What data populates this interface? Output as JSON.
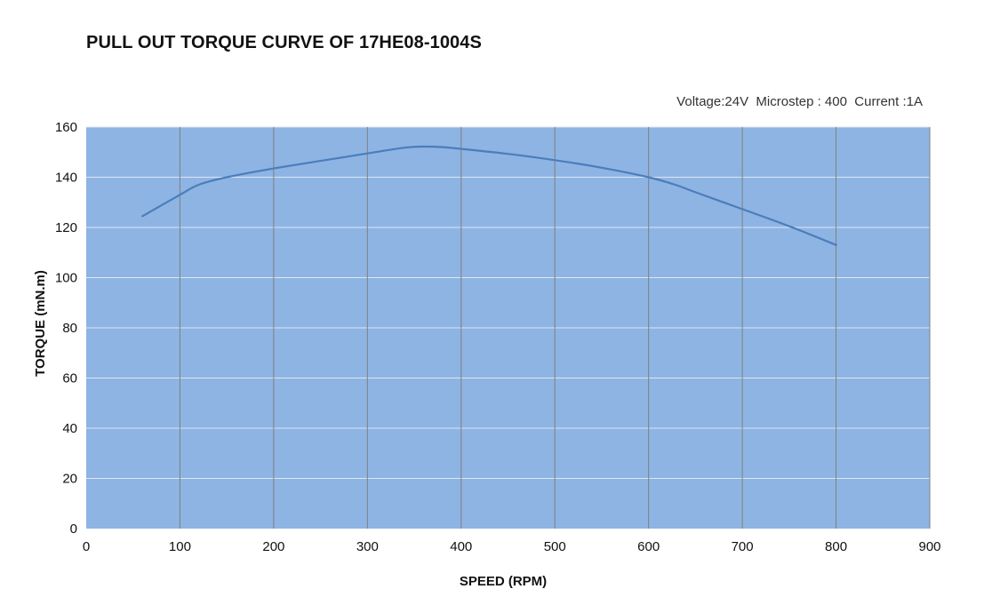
{
  "title": "PULL OUT TORQUE CURVE OF 17HE08-1004S",
  "subtitle": "Voltage:24V  Microstep : 400  Current :1A",
  "colors": {
    "plot_background": "#8eb4e3",
    "gridline_vertical": "#7f7f7f",
    "gridline_horizontal": "#dce6f2",
    "series_line": "#4a7ebb"
  },
  "chart_data": {
    "type": "line",
    "title": "PULL OUT TORQUE CURVE OF 17HE08-1004S",
    "xlabel": "SPEED (RPM)",
    "ylabel": "TORQUE (mN.m)",
    "xlim": [
      0,
      900
    ],
    "ylim": [
      0,
      160
    ],
    "xticks": [
      0,
      100,
      200,
      300,
      400,
      500,
      600,
      700,
      800,
      900
    ],
    "yticks": [
      0,
      20,
      40,
      60,
      80,
      100,
      120,
      140,
      160
    ],
    "grid": true,
    "legend": "none",
    "series": [
      {
        "x": [
          60,
          100,
          120,
          150,
          200,
          250,
          300,
          340,
          360,
          380,
          400,
          450,
          500,
          550,
          600,
          630,
          650,
          700,
          750,
          800
        ],
        "values": [
          124.5,
          133,
          137,
          140,
          143.5,
          146.5,
          149.5,
          151.8,
          152.2,
          152,
          151.3,
          149.3,
          146.8,
          143.8,
          140,
          136.8,
          134,
          127.3,
          120.5,
          113
        ]
      }
    ]
  }
}
